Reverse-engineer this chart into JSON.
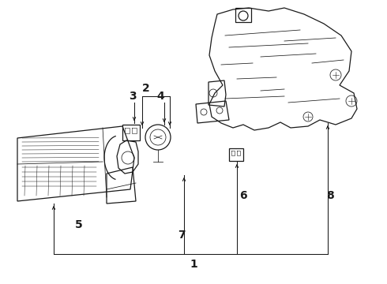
{
  "bg_color": "#ffffff",
  "line_color": "#1a1a1a",
  "figsize": [
    4.9,
    3.6
  ],
  "dpi": 100,
  "font_size": 10,
  "font_weight": "bold"
}
